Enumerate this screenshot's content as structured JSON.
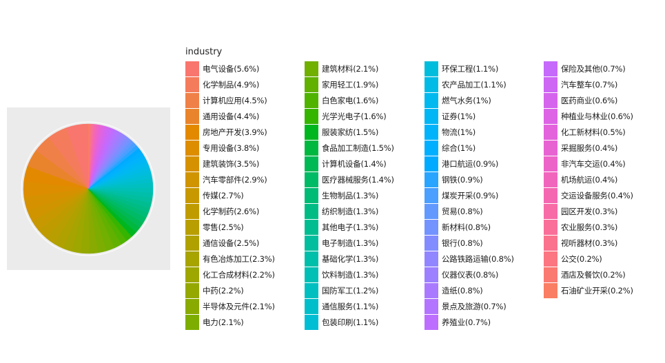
{
  "chart_data": {
    "type": "pie",
    "legend_title": "industry",
    "legend_position": "right",
    "grid": true,
    "slices": [
      {
        "label": "电气设备(5.6%)",
        "value": 5.6,
        "color": "#F8766D"
      },
      {
        "label": "化学制品(4.9%)",
        "value": 4.9,
        "color": "#F47C5C"
      },
      {
        "label": "计算机应用(4.5%)",
        "value": 4.5,
        "color": "#EF8048"
      },
      {
        "label": "通用设备(4.4%)",
        "value": 4.4,
        "color": "#E9842C"
      },
      {
        "label": "房地产开发(3.9%)",
        "value": 3.9,
        "color": "#E38900"
      },
      {
        "label": "专用设备(3.8%)",
        "value": 3.8,
        "color": "#DD8D00"
      },
      {
        "label": "建筑装饰(3.5%)",
        "value": 3.5,
        "color": "#D69100"
      },
      {
        "label": "汽车零部件(2.9%)",
        "value": 2.9,
        "color": "#CF9400"
      },
      {
        "label": "传媒(2.7%)",
        "value": 2.7,
        "color": "#C89800"
      },
      {
        "label": "化学制药(2.6%)",
        "value": 2.6,
        "color": "#C09B00"
      },
      {
        "label": "零售(2.5%)",
        "value": 2.5,
        "color": "#B89E00"
      },
      {
        "label": "通信设备(2.5%)",
        "value": 2.5,
        "color": "#B0A100"
      },
      {
        "label": "有色冶炼加工(2.3%)",
        "value": 2.3,
        "color": "#A7A300"
      },
      {
        "label": "化工合成材料(2.2%)",
        "value": 2.2,
        "color": "#9EA600"
      },
      {
        "label": "中药(2.2%)",
        "value": 2.2,
        "color": "#94A800"
      },
      {
        "label": "半导体及元件(2.1%)",
        "value": 2.1,
        "color": "#89AA00"
      },
      {
        "label": "电力(2.1%)",
        "value": 2.1,
        "color": "#7DAD00"
      },
      {
        "label": "建筑材料(2.1%)",
        "value": 2.1,
        "color": "#71AF00"
      },
      {
        "label": "家用轻工(1.9%)",
        "value": 1.9,
        "color": "#62B100"
      },
      {
        "label": "白色家电(1.6%)",
        "value": 1.6,
        "color": "#4FB300"
      },
      {
        "label": "光学光电子(1.6%)",
        "value": 1.6,
        "color": "#35B500"
      },
      {
        "label": "服装家纺(1.5%)",
        "value": 1.5,
        "color": "#00B61E"
      },
      {
        "label": "食品加工制造(1.5%)",
        "value": 1.5,
        "color": "#00B840"
      },
      {
        "label": "计算机设备(1.4%)",
        "value": 1.4,
        "color": "#00B955"
      },
      {
        "label": "医疗器械服务(1.4%)",
        "value": 1.4,
        "color": "#00BA66"
      },
      {
        "label": "生物制品(1.3%)",
        "value": 1.3,
        "color": "#00BB76"
      },
      {
        "label": "纺织制造(1.3%)",
        "value": 1.3,
        "color": "#00BC84"
      },
      {
        "label": "其他电子(1.3%)",
        "value": 1.3,
        "color": "#00BD91"
      },
      {
        "label": "电子制造(1.3%)",
        "value": 1.3,
        "color": "#00BE9E"
      },
      {
        "label": "基础化学(1.3%)",
        "value": 1.3,
        "color": "#00BFAA"
      },
      {
        "label": "饮料制造(1.3%)",
        "value": 1.3,
        "color": "#00BFB5"
      },
      {
        "label": "国防军工(1.2%)",
        "value": 1.2,
        "color": "#00BFC0"
      },
      {
        "label": "通信服务(1.1%)",
        "value": 1.1,
        "color": "#00BFCA"
      },
      {
        "label": "包装印刷(1.1%)",
        "value": 1.1,
        "color": "#00BED4"
      },
      {
        "label": "环保工程(1.1%)",
        "value": 1.1,
        "color": "#00BDDD"
      },
      {
        "label": "农产品加工(1.1%)",
        "value": 1.1,
        "color": "#00BBE6"
      },
      {
        "label": "燃气水务(1%)",
        "value": 1.0,
        "color": "#00B9EE"
      },
      {
        "label": "证券(1%)",
        "value": 1.0,
        "color": "#00B6F5"
      },
      {
        "label": "物流(1%)",
        "value": 1.0,
        "color": "#00B3FB"
      },
      {
        "label": "综合(1%)",
        "value": 1.0,
        "color": "#00AFFF"
      },
      {
        "label": "港口航运(0.9%)",
        "value": 0.9,
        "color": "#00AAFF"
      },
      {
        "label": "钢铁(0.9%)",
        "value": 0.9,
        "color": "#2AA5FF"
      },
      {
        "label": "煤炭开采(0.9%)",
        "value": 0.9,
        "color": "#4A9FFF"
      },
      {
        "label": "贸易(0.8%)",
        "value": 0.8,
        "color": "#6199FF"
      },
      {
        "label": "新材料(0.8%)",
        "value": 0.8,
        "color": "#7393FF"
      },
      {
        "label": "银行(0.8%)",
        "value": 0.8,
        "color": "#838CFF"
      },
      {
        "label": "公路铁路运输(0.8%)",
        "value": 0.8,
        "color": "#9186FF"
      },
      {
        "label": "仪器仪表(0.8%)",
        "value": 0.8,
        "color": "#9D80FF"
      },
      {
        "label": "造纸(0.8%)",
        "value": 0.8,
        "color": "#A97AFF"
      },
      {
        "label": "景点及旅游(0.7%)",
        "value": 0.7,
        "color": "#B374FF"
      },
      {
        "label": "养殖业(0.7%)",
        "value": 0.7,
        "color": "#BD6EFF"
      },
      {
        "label": "保险及其他(0.7%)",
        "value": 0.7,
        "color": "#C56AFA"
      },
      {
        "label": "汽车整车(0.7%)",
        "value": 0.7,
        "color": "#CD67F4"
      },
      {
        "label": "医药商业(0.6%)",
        "value": 0.6,
        "color": "#D565ED"
      },
      {
        "label": "种植业与林业(0.6%)",
        "value": 0.6,
        "color": "#DC64E5"
      },
      {
        "label": "化工新材料(0.5%)",
        "value": 0.5,
        "color": "#E263DC"
      },
      {
        "label": "采掘服务(0.4%)",
        "value": 0.4,
        "color": "#E863D2"
      },
      {
        "label": "非汽车交运(0.4%)",
        "value": 0.4,
        "color": "#ED64C8"
      },
      {
        "label": "机场航运(0.4%)",
        "value": 0.4,
        "color": "#F166BD"
      },
      {
        "label": "交运设备服务(0.4%)",
        "value": 0.4,
        "color": "#F468B2"
      },
      {
        "label": "园区开发(0.3%)",
        "value": 0.3,
        "color": "#F76BA6"
      },
      {
        "label": "农业服务(0.3%)",
        "value": 0.3,
        "color": "#F96F9A"
      },
      {
        "label": "视听器材(0.3%)",
        "value": 0.3,
        "color": "#FA728D"
      },
      {
        "label": "公交(0.2%)",
        "value": 0.2,
        "color": "#FB7680"
      },
      {
        "label": "酒店及餐饮(0.2%)",
        "value": 0.2,
        "color": "#FA7A72"
      },
      {
        "label": "石油矿业开采(0.2%)",
        "value": 0.2,
        "color": "#F97E63"
      }
    ]
  }
}
